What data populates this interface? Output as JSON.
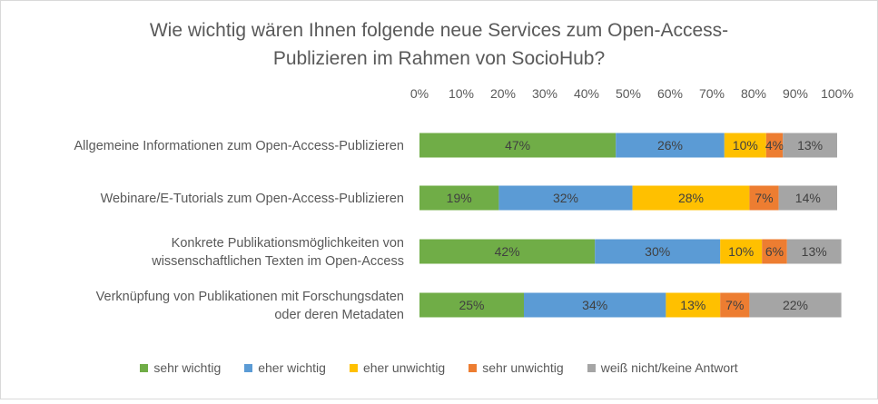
{
  "chart_data": {
    "type": "bar",
    "orientation": "horizontal",
    "stacked": "percent",
    "title": "Wie wichtig wären Ihnen folgende neue Services zum Open-Access-\nPublizieren im Rahmen von SocioHub?",
    "categories": [
      "Allgemeine Informationen zum Open-Access-Publizieren",
      "Webinare/E-Tutorials zum Open-Access-Publizieren",
      "Konkrete Publikationsmöglichkeiten von wissenschaftlichen Texten im Open-Access",
      "Verknüpfung von Publikationen mit Forschungsdaten oder deren Metadaten"
    ],
    "category_lines": [
      [
        "Allgemeine Informationen zum Open-Access-Publizieren"
      ],
      [
        "Webinare/E-Tutorials zum Open-Access-Publizieren"
      ],
      [
        "Konkrete Publikationsmöglichkeiten von",
        "wissenschaftlichen Texten im Open-Access"
      ],
      [
        "Verknüpfung von Publikationen mit Forschungsdaten",
        "oder deren Metadaten"
      ]
    ],
    "series": [
      {
        "name": "sehr wichtig",
        "color": "#70ad47",
        "values": [
          47,
          19,
          42,
          25
        ],
        "labels": [
          "47%",
          "19%",
          "42%",
          "25%"
        ]
      },
      {
        "name": "eher wichtig",
        "color": "#5b9bd5",
        "values": [
          26,
          32,
          30,
          34
        ],
        "labels": [
          "26%",
          "32%",
          "30%",
          "34%"
        ]
      },
      {
        "name": "eher unwichtig",
        "color": "#ffc000",
        "values": [
          10,
          28,
          10,
          13
        ],
        "labels": [
          "10%",
          "28%",
          "10%",
          "13%"
        ]
      },
      {
        "name": "sehr unwichtig",
        "color": "#ed7d31",
        "values": [
          4,
          7,
          6,
          7
        ],
        "labels": [
          "4%",
          "7%",
          "6%",
          "7%"
        ]
      },
      {
        "name": "weiß nicht/keine Antwort",
        "color": "#a5a5a5",
        "values": [
          13,
          14,
          13,
          22
        ],
        "labels": [
          "13%",
          "14%",
          "13%",
          "22%"
        ]
      }
    ],
    "xlim": [
      0,
      100
    ],
    "x_ticks": [
      "0%",
      "10%",
      "20%",
      "30%",
      "40%",
      "50%",
      "60%",
      "70%",
      "80%",
      "90%",
      "100%"
    ],
    "x_axis_position": "top",
    "grid": false,
    "legend_position": "bottom",
    "text_color": "#595959"
  }
}
